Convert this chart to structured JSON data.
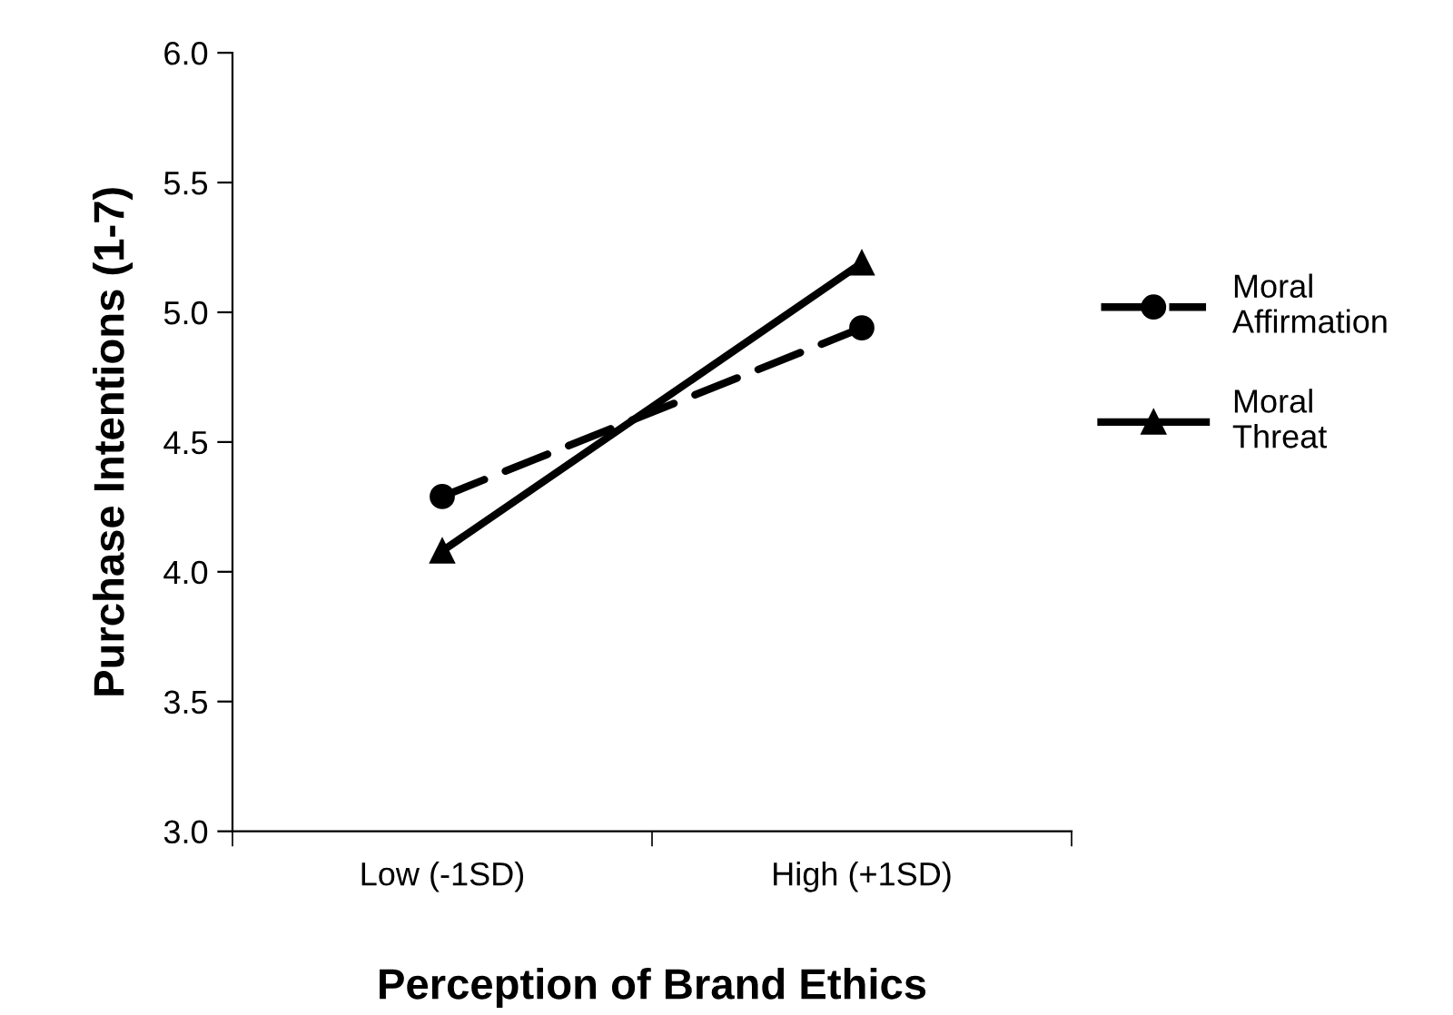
{
  "chart_data": {
    "type": "line",
    "xlabel": "Perception of Brand Ethics",
    "ylabel": "Purchase Intentions (1-7)",
    "categories": [
      "Low (-1SD)",
      "High (+1SD)"
    ],
    "series": [
      {
        "name": "Moral Affirmation",
        "color": "#000000",
        "values": [
          4.29,
          4.94
        ],
        "marker": "circle",
        "line_style": "dashed"
      },
      {
        "name": "Moral Threat",
        "color": "#000000",
        "values": [
          4.08,
          5.19
        ],
        "marker": "triangle",
        "line_style": "solid"
      }
    ],
    "ylim": [
      3.0,
      6.0
    ],
    "yticks": [
      {
        "value": 3.0,
        "label": "3.0"
      },
      {
        "value": 3.5,
        "label": "3.5"
      },
      {
        "value": 4.0,
        "label": "4.0"
      },
      {
        "value": 4.5,
        "label": "4.5"
      },
      {
        "value": 5.0,
        "label": "5.0"
      },
      {
        "value": 5.5,
        "label": "5.5"
      },
      {
        "value": 6.0,
        "label": "6.0"
      }
    ],
    "grid": false,
    "legend": "right"
  }
}
